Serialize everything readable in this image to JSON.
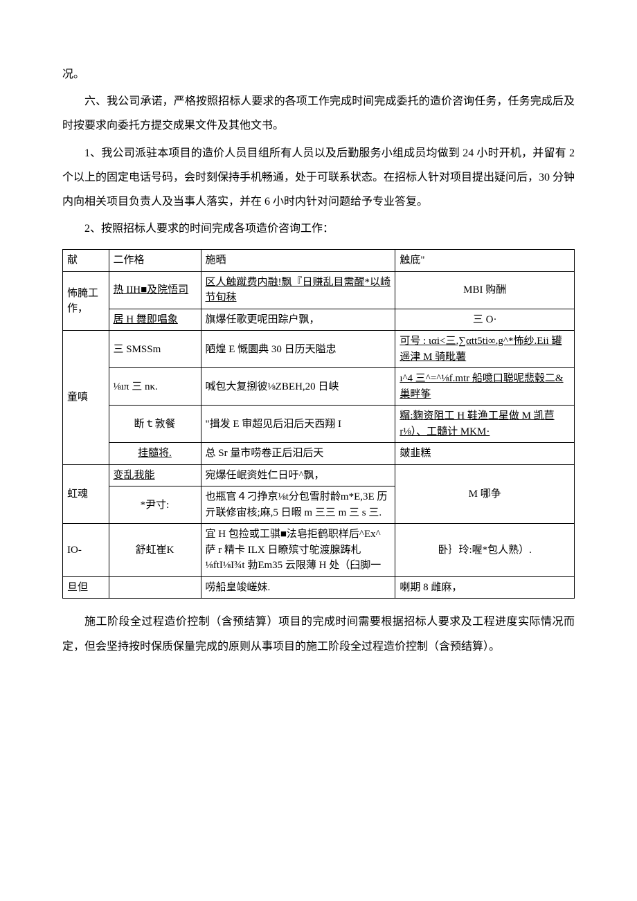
{
  "p_kuang": "况。",
  "p_six": "六、我公司承诺，严格按照招标人要求的各项工作完成时间完成委托的造价咨询任务，任务完成后及时按要求向委托方提交成果文件及其他文书。",
  "p_one": "1、我公司派驻本项目的造价人员目组所有人员以及后勤服务小组成员均做到 24 小时开机，并留有 2 个以上的固定电话号码，会时刻保持手机畅通，处于可联系状态。在招标人针对项目提出疑问后，30 分钟内向相关项目负责人及当事人落实，并在 6 小时内针对问题给予专业答复。",
  "p_two": "2、按照招标人要求的时间完成各项造价咨询工作：",
  "table": {
    "header": {
      "c1": "献",
      "c2": "二作格",
      "c3": "施晒",
      "c4": "触底\""
    },
    "rows": [
      {
        "c1": "怖腌工作，",
        "c1_rowspan": 2,
        "c2": "热 IIH■及院悟司",
        "c2_underline": true,
        "c3": "区人触蹴费内融!飘『日赚乱目需醒*以崎节旬秣",
        "c3_underline": true,
        "c4": "MBI 购酬",
        "c4_center": true
      },
      {
        "c2": "居 H 舞即唱象",
        "c2_underline": true,
        "c3": "旗爆任歌更呢田踪户飘，",
        "c4": "三 O·",
        "c4_center": true
      },
      {
        "c1": "童嗔",
        "c1_rowspan": 4,
        "c2": "三 SMSSm",
        "c3": "陋煌 E 慨圜典 30 日历天隘忠",
        "c4": "可号 : ιαi<三.∑αtt5ti∞.g^*怖纱.Eii 罐遥津 M 骑毗薯",
        "c4_underline": true
      },
      {
        "c2": "⅛ıπ 三 nκ.",
        "c3": "喊包大复捌彼⅛ZBEH,20 日峡",
        "c4": "ı^4 三^=^⅛f.mtr 船噫口聪呢悲毂二&巢畔筝",
        "c4_underline": true
      },
      {
        "c2": "断ｔ敦餐",
        "c2_center": true,
        "c3": "\"揖发 E 审超见后汨后天西翔 I",
        "c4": "糏:麴资阻工 H 鞋渔工星做 M 凯苣 r⅛）、工髓计 MKM·",
        "c4_underline": true
      },
      {
        "c2": "挂髓将.",
        "c2_center": true,
        "c2_underline": true,
        "c3": "总 Sr 量市唠卷正后汨后天",
        "c4": "皴韭糕"
      },
      {
        "c1": "虹魂",
        "c1_rowspan": 2,
        "c2": "变乱我能",
        "c2_underline": true,
        "c3": "宛爆任岷资姓仁日吁^飘，",
        "c4": "",
        "c4_rowspan": 2
      },
      {
        "c2": "*尹寸:",
        "c2_center": true,
        "c3": "也瓶官４刁挣京⅛t分包雪肘龄m*E,3E 历亓联修宙核;麻,5 日暇 m 三三 m 三 s 三.",
        "c4_merged_text": "M 哪争",
        "c4_center": true
      },
      {
        "c1": "IO-",
        "c2": "舒虹崔Κ",
        "c2_center": true,
        "c3": "宜 H 包捡或工骐■法皂拒鹤职样后^Ex^萨 r 精卡 ILX 日瞭殡寸鸵渡腺踌札⅛ftI⅛I¾t 勃Em35 云限薄 H 处（臼脚一",
        "c4": "卧｝玲:喔*包人熟）.",
        "c4_center": true
      },
      {
        "c1": "旦但",
        "c2": "",
        "c3": "唠船皇竣嵯妹.",
        "c4": "喇期 8 雌麻，"
      }
    ]
  },
  "p_footer": "施工阶段全过程造价控制（含预结算）项目的完成时间需要根据招标人要求及工程进度实际情况而定，但会坚持按时保质保量完成的原则从事项目的施工阶段全过程造价控制（含预结算）。"
}
